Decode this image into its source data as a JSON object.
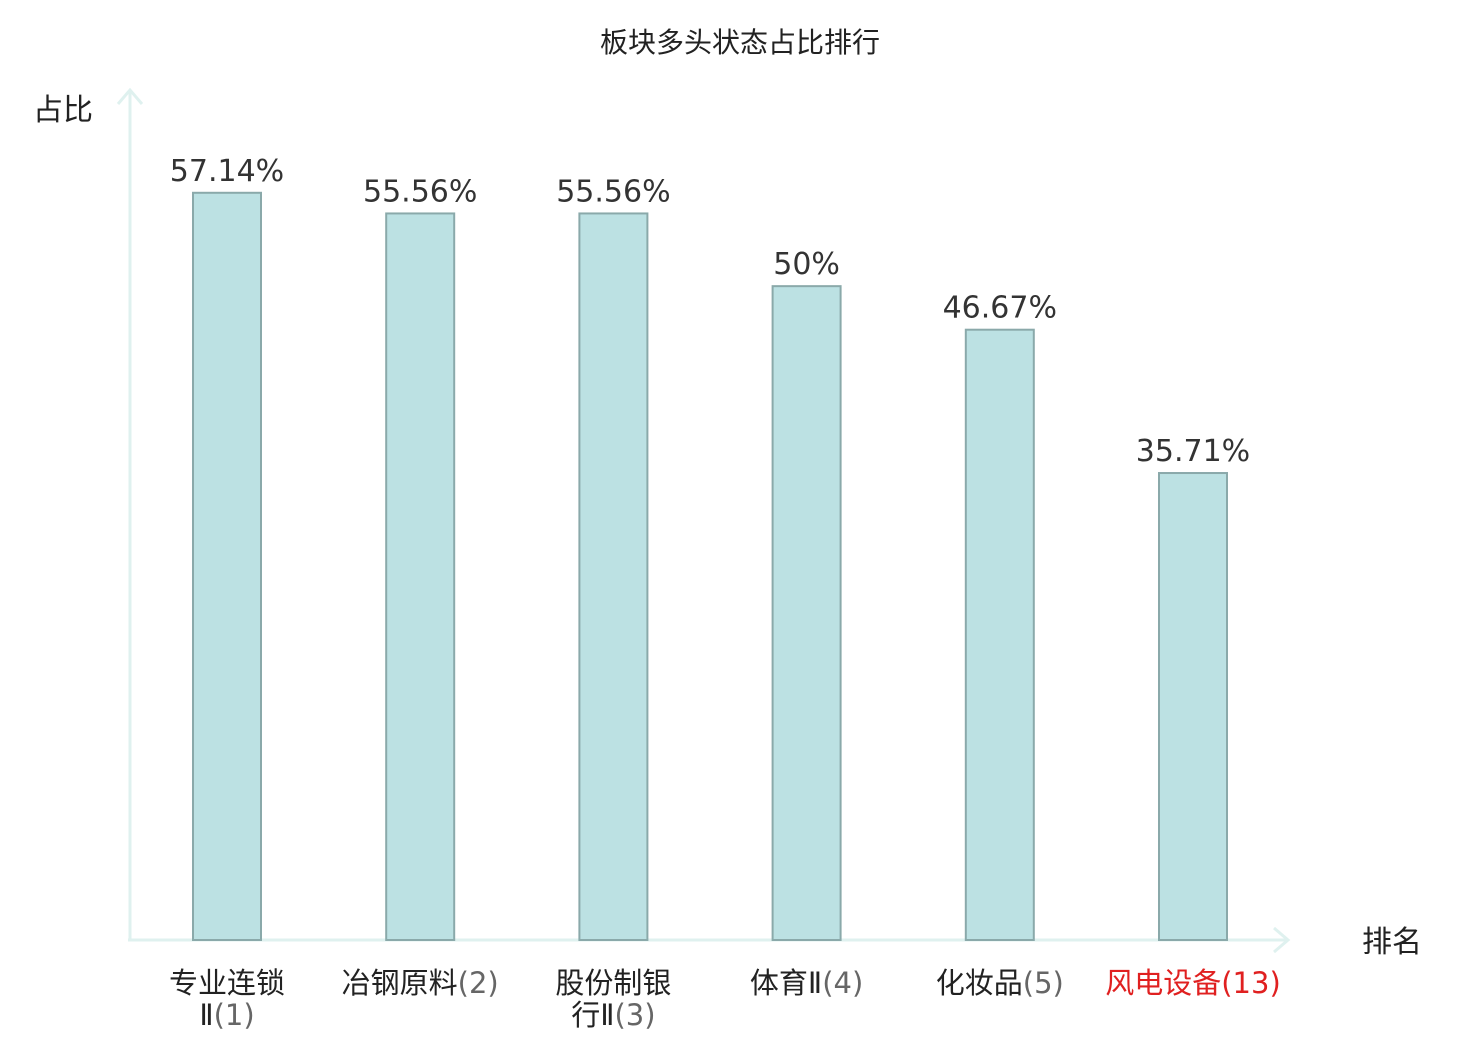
{
  "chart_data": {
    "type": "bar",
    "title": "板块多头状态占比排行",
    "ylabel": "占比",
    "xlabel": "排名",
    "ylim": [
      0,
      65
    ],
    "grid": false,
    "legend": "none",
    "bar_fill": "#bce1e3",
    "bar_stroke": "#8aa9aa",
    "axis_color": "#dff1ef",
    "highlight_color": "#e02020",
    "categories": [
      {
        "lines": [
          "专业连锁",
          "Ⅱ"
        ],
        "rank": "(1)",
        "highlight": false
      },
      {
        "lines": [
          "冶钢原料"
        ],
        "rank": "(2)",
        "highlight": false
      },
      {
        "lines": [
          "股份制银",
          "行Ⅱ"
        ],
        "rank": "(3)",
        "highlight": false
      },
      {
        "lines": [
          "体育Ⅱ"
        ],
        "rank": "(4)",
        "highlight": false
      },
      {
        "lines": [
          "化妆品"
        ],
        "rank": "(5)",
        "highlight": false
      },
      {
        "lines": [
          "风电设备"
        ],
        "rank": "(13)",
        "highlight": true
      }
    ],
    "values": [
      57.14,
      55.56,
      55.56,
      50,
      46.67,
      35.71
    ],
    "value_labels": [
      "57.14%",
      "55.56%",
      "55.56%",
      "50%",
      "46.67%",
      "35.71%"
    ]
  }
}
